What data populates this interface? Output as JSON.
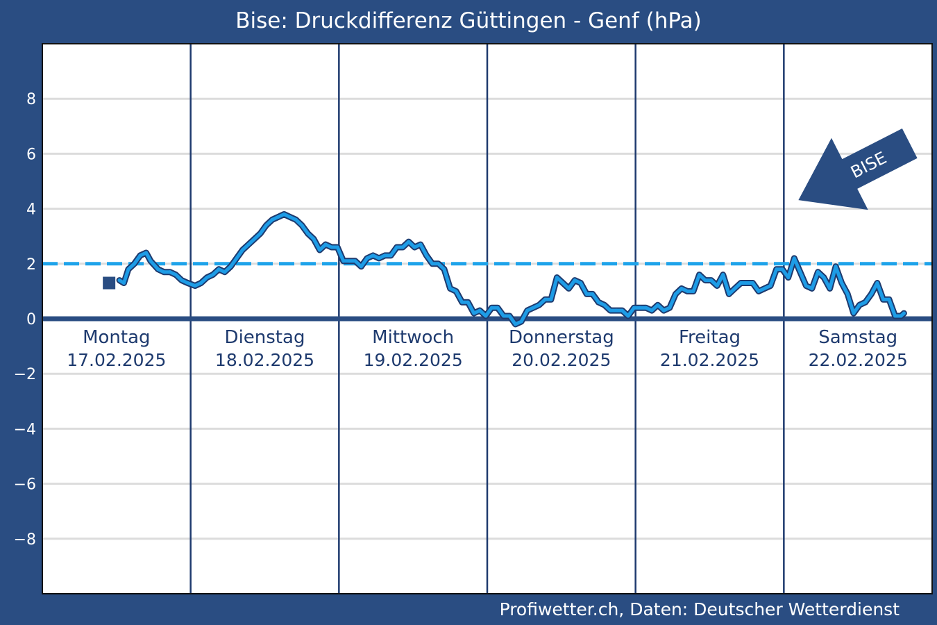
{
  "chart_data": {
    "type": "line",
    "title": "Bise: Druckdifferenz Güttingen - Genf (hPa)",
    "ylim": [
      -10,
      10
    ],
    "yticks": [
      8,
      6,
      4,
      2,
      0,
      -2,
      -4,
      -6,
      -8
    ],
    "ytick_labels": [
      "8",
      "6",
      "4",
      "2",
      "0",
      "−2",
      "−4",
      "−6",
      "−8"
    ],
    "x_unit": "day",
    "x_range": [
      0,
      6
    ],
    "days": [
      {
        "weekday": "Montag",
        "date": "17.02.2025"
      },
      {
        "weekday": "Dienstag",
        "date": "18.02.2025"
      },
      {
        "weekday": "Mittwoch",
        "date": "19.02.2025"
      },
      {
        "weekday": "Donnerstag",
        "date": "20.02.2025"
      },
      {
        "weekday": "Freitag",
        "date": "21.02.2025"
      },
      {
        "weekday": "Samstag",
        "date": "22.02.2025"
      }
    ],
    "threshold": 2,
    "grid": true,
    "current_marker": {
      "x": 0.45,
      "y": 1.3
    },
    "series": [
      {
        "color": "#1e9ce6",
        "points": [
          [
            0.52,
            1.4
          ],
          [
            0.55,
            1.3
          ],
          [
            0.58,
            1.8
          ],
          [
            0.62,
            2.0
          ],
          [
            0.66,
            2.3
          ],
          [
            0.7,
            2.4
          ],
          [
            0.73,
            2.1
          ],
          [
            0.78,
            1.8
          ],
          [
            0.82,
            1.7
          ],
          [
            0.86,
            1.7
          ],
          [
            0.9,
            1.6
          ],
          [
            0.94,
            1.4
          ],
          [
            0.98,
            1.3
          ],
          [
            1.03,
            1.2
          ],
          [
            1.07,
            1.3
          ],
          [
            1.11,
            1.5
          ],
          [
            1.15,
            1.6
          ],
          [
            1.19,
            1.8
          ],
          [
            1.23,
            1.7
          ],
          [
            1.27,
            1.9
          ],
          [
            1.31,
            2.2
          ],
          [
            1.35,
            2.5
          ],
          [
            1.39,
            2.7
          ],
          [
            1.43,
            2.9
          ],
          [
            1.47,
            3.1
          ],
          [
            1.51,
            3.4
          ],
          [
            1.55,
            3.6
          ],
          [
            1.59,
            3.7
          ],
          [
            1.63,
            3.8
          ],
          [
            1.67,
            3.7
          ],
          [
            1.71,
            3.6
          ],
          [
            1.75,
            3.4
          ],
          [
            1.79,
            3.1
          ],
          [
            1.83,
            2.9
          ],
          [
            1.87,
            2.5
          ],
          [
            1.91,
            2.7
          ],
          [
            1.95,
            2.6
          ],
          [
            1.99,
            2.6
          ],
          [
            2.03,
            2.1
          ],
          [
            2.07,
            2.1
          ],
          [
            2.11,
            2.1
          ],
          [
            2.15,
            1.9
          ],
          [
            2.19,
            2.2
          ],
          [
            2.23,
            2.3
          ],
          [
            2.27,
            2.2
          ],
          [
            2.31,
            2.3
          ],
          [
            2.35,
            2.3
          ],
          [
            2.39,
            2.6
          ],
          [
            2.43,
            2.6
          ],
          [
            2.47,
            2.8
          ],
          [
            2.51,
            2.6
          ],
          [
            2.55,
            2.7
          ],
          [
            2.59,
            2.3
          ],
          [
            2.63,
            2.0
          ],
          [
            2.67,
            2.0
          ],
          [
            2.71,
            1.8
          ],
          [
            2.75,
            1.1
          ],
          [
            2.79,
            1.0
          ],
          [
            2.83,
            0.6
          ],
          [
            2.87,
            0.6
          ],
          [
            2.91,
            0.2
          ],
          [
            2.95,
            0.3
          ],
          [
            2.99,
            0.1
          ],
          [
            3.03,
            0.4
          ],
          [
            3.07,
            0.4
          ],
          [
            3.11,
            0.1
          ],
          [
            3.15,
            0.1
          ],
          [
            3.19,
            -0.2
          ],
          [
            3.23,
            -0.1
          ],
          [
            3.27,
            0.3
          ],
          [
            3.31,
            0.4
          ],
          [
            3.35,
            0.5
          ],
          [
            3.39,
            0.7
          ],
          [
            3.43,
            0.7
          ],
          [
            3.47,
            1.5
          ],
          [
            3.51,
            1.3
          ],
          [
            3.55,
            1.1
          ],
          [
            3.59,
            1.4
          ],
          [
            3.63,
            1.3
          ],
          [
            3.67,
            0.9
          ],
          [
            3.71,
            0.9
          ],
          [
            3.75,
            0.6
          ],
          [
            3.79,
            0.5
          ],
          [
            3.83,
            0.3
          ],
          [
            3.87,
            0.3
          ],
          [
            3.91,
            0.3
          ],
          [
            3.95,
            0.1
          ],
          [
            3.99,
            0.4
          ],
          [
            4.03,
            0.4
          ],
          [
            4.07,
            0.4
          ],
          [
            4.11,
            0.3
          ],
          [
            4.15,
            0.5
          ],
          [
            4.19,
            0.3
          ],
          [
            4.23,
            0.4
          ],
          [
            4.27,
            0.9
          ],
          [
            4.31,
            1.1
          ],
          [
            4.35,
            1.0
          ],
          [
            4.39,
            1.0
          ],
          [
            4.43,
            1.6
          ],
          [
            4.47,
            1.4
          ],
          [
            4.51,
            1.4
          ],
          [
            4.55,
            1.2
          ],
          [
            4.59,
            1.6
          ],
          [
            4.63,
            0.9
          ],
          [
            4.67,
            1.1
          ],
          [
            4.71,
            1.3
          ],
          [
            4.75,
            1.3
          ],
          [
            4.79,
            1.3
          ],
          [
            4.83,
            1.0
          ],
          [
            4.87,
            1.1
          ],
          [
            4.91,
            1.2
          ],
          [
            4.95,
            1.8
          ],
          [
            4.99,
            1.8
          ],
          [
            5.03,
            1.5
          ],
          [
            5.07,
            2.2
          ],
          [
            5.11,
            1.7
          ],
          [
            5.15,
            1.2
          ],
          [
            5.19,
            1.1
          ],
          [
            5.23,
            1.7
          ],
          [
            5.27,
            1.5
          ],
          [
            5.31,
            1.1
          ],
          [
            5.35,
            1.9
          ],
          [
            5.39,
            1.3
          ],
          [
            5.43,
            0.9
          ],
          [
            5.47,
            0.2
          ],
          [
            5.51,
            0.5
          ],
          [
            5.55,
            0.6
          ],
          [
            5.59,
            0.9
          ],
          [
            5.63,
            1.3
          ],
          [
            5.67,
            0.7
          ],
          [
            5.71,
            0.7
          ],
          [
            5.75,
            0.1
          ],
          [
            5.79,
            0.1
          ],
          [
            5.81,
            0.2
          ]
        ]
      }
    ],
    "annotation": {
      "text": "BISE",
      "shape": "arrow",
      "direction": "from upper-right toward lower-left"
    }
  },
  "footer": {
    "credit": "Profiwetter.ch, Daten: Deutscher Wetterdienst"
  },
  "colors": {
    "background": "#2a4d82",
    "plot_background": "#ffffff",
    "grid": "#dcdcdc",
    "separator": "#1e3a6e",
    "zero_line": "#2a4d82",
    "line": "#1e9ce6",
    "line_outline": "#1e3a6e",
    "threshold": "#1ea3ea",
    "day_label": "#1e3a6e",
    "arrow": "#2a4d82"
  }
}
